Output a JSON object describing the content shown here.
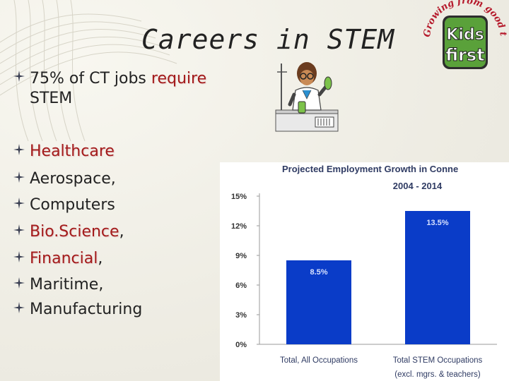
{
  "slide": {
    "title": "Careers in STEM",
    "first_bullet": {
      "prefix": "75% of CT jobs",
      "highlight": "require",
      "suffix": "STEM"
    },
    "industries": [
      {
        "text": "Healthcare",
        "highlighted": true,
        "trailing": ""
      },
      {
        "text": "Aerospace,",
        "highlighted": false,
        "trailing": ""
      },
      {
        "text": "Computers",
        "highlighted": false,
        "trailing": ""
      },
      {
        "text": "Bio.Science",
        "highlighted": true,
        "trailing": ","
      },
      {
        "text": "Financial",
        "highlighted": true,
        "trailing": ","
      },
      {
        "text": "Maritime,",
        "highlighted": false,
        "trailing": ""
      },
      {
        "text": "Manufacturing",
        "highlighted": false,
        "trailing": ""
      }
    ],
    "logo": {
      "arc_text": "Growing from good to great",
      "name_top": "Kids",
      "name_bottom": "first"
    },
    "colors": {
      "highlight_red": "#a31b1b",
      "bar_blue": "#0a3cc8",
      "chart_title_navy": "#2f3b63"
    }
  },
  "chart_data": {
    "type": "bar",
    "title": "Projected Employment Growth in Conne",
    "subtitle": "2004 - 2014",
    "categories": [
      "Total, All Occupations",
      "Total STEM Occupations"
    ],
    "category_sublabels": [
      "",
      "(excl. mgrs. & teachers)"
    ],
    "values": [
      8.5,
      13.5
    ],
    "data_labels": [
      "8.5%",
      "13.5%"
    ],
    "y_ticks": [
      "0%",
      "3%",
      "6%",
      "9%",
      "12%",
      "15%"
    ],
    "y_tick_values": [
      0,
      3,
      6,
      9,
      12,
      15
    ],
    "ylim": [
      0,
      15
    ],
    "grid": false,
    "legend": "none"
  }
}
